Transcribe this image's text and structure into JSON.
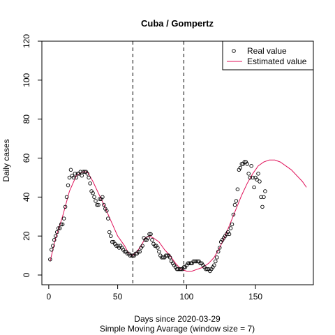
{
  "chart_data": {
    "type": "scatter",
    "title": "Cuba / Gompertz",
    "xlabel": "Days since 2020-03-29",
    "subtitle": "Simple Moving Avarage (window size = 7)",
    "ylabel": "Daily cases",
    "xlim": [
      -5,
      192
    ],
    "ylim": [
      -5,
      120
    ],
    "xticks": [
      0,
      50,
      100,
      150
    ],
    "yticks": [
      0,
      20,
      40,
      60,
      80,
      100,
      120
    ],
    "vlines": [
      61,
      98
    ],
    "legend": {
      "position": "top-right",
      "entries": [
        {
          "label": "Real value",
          "style": "circle",
          "color": "#000000"
        },
        {
          "label": "Estimated value",
          "style": "line",
          "color": "#e0125a"
        }
      ]
    },
    "series": [
      {
        "name": "Real value",
        "marker": "circle",
        "color": "#000000",
        "points": [
          [
            1,
            8
          ],
          [
            2,
            13
          ],
          [
            3,
            15
          ],
          [
            4,
            18
          ],
          [
            5,
            20
          ],
          [
            6,
            22
          ],
          [
            7,
            24
          ],
          [
            8,
            24
          ],
          [
            9,
            26
          ],
          [
            10,
            26
          ],
          [
            11,
            29
          ],
          [
            12,
            35
          ],
          [
            13,
            40
          ],
          [
            14,
            46
          ],
          [
            15,
            50
          ],
          [
            16,
            54
          ],
          [
            17,
            51
          ],
          [
            18,
            50
          ],
          [
            19,
            52
          ],
          [
            20,
            50
          ],
          [
            21,
            52
          ],
          [
            22,
            52
          ],
          [
            23,
            53
          ],
          [
            24,
            51
          ],
          [
            25,
            53
          ],
          [
            26,
            53
          ],
          [
            27,
            53
          ],
          [
            28,
            52
          ],
          [
            29,
            50
          ],
          [
            30,
            47
          ],
          [
            31,
            43
          ],
          [
            32,
            42
          ],
          [
            33,
            40
          ],
          [
            34,
            38
          ],
          [
            35,
            36
          ],
          [
            36,
            36
          ],
          [
            37,
            39
          ],
          [
            38,
            39
          ],
          [
            39,
            40
          ],
          [
            40,
            36
          ],
          [
            41,
            34
          ],
          [
            42,
            33
          ],
          [
            43,
            29
          ],
          [
            44,
            22
          ],
          [
            45,
            20
          ],
          [
            46,
            17
          ],
          [
            47,
            17
          ],
          [
            48,
            16
          ],
          [
            49,
            15
          ],
          [
            50,
            15
          ],
          [
            51,
            14
          ],
          [
            52,
            15
          ],
          [
            53,
            14
          ],
          [
            54,
            13
          ],
          [
            55,
            12
          ],
          [
            56,
            12
          ],
          [
            57,
            11
          ],
          [
            58,
            11
          ],
          [
            59,
            10
          ],
          [
            60,
            10
          ],
          [
            61,
            10
          ],
          [
            62,
            10
          ],
          [
            63,
            11
          ],
          [
            64,
            11
          ],
          [
            65,
            12
          ],
          [
            66,
            12
          ],
          [
            67,
            14
          ],
          [
            68,
            15
          ],
          [
            69,
            19
          ],
          [
            70,
            18
          ],
          [
            71,
            18
          ],
          [
            72,
            19
          ],
          [
            73,
            21
          ],
          [
            74,
            21
          ],
          [
            75,
            18
          ],
          [
            76,
            16
          ],
          [
            77,
            15
          ],
          [
            78,
            15
          ],
          [
            79,
            14
          ],
          [
            80,
            12
          ],
          [
            81,
            10
          ],
          [
            82,
            9
          ],
          [
            83,
            9
          ],
          [
            84,
            9
          ],
          [
            85,
            10
          ],
          [
            86,
            10
          ],
          [
            87,
            10
          ],
          [
            88,
            9
          ],
          [
            89,
            7
          ],
          [
            90,
            6
          ],
          [
            91,
            5
          ],
          [
            92,
            4
          ],
          [
            93,
            3
          ],
          [
            94,
            3
          ],
          [
            95,
            3
          ],
          [
            96,
            3
          ],
          [
            97,
            3
          ],
          [
            98,
            4
          ],
          [
            99,
            4
          ],
          [
            100,
            5
          ],
          [
            101,
            6
          ],
          [
            102,
            6
          ],
          [
            103,
            6
          ],
          [
            104,
            6
          ],
          [
            105,
            7
          ],
          [
            106,
            7
          ],
          [
            107,
            7
          ],
          [
            108,
            7
          ],
          [
            109,
            7
          ],
          [
            110,
            6
          ],
          [
            111,
            6
          ],
          [
            112,
            5
          ],
          [
            113,
            4
          ],
          [
            114,
            3
          ],
          [
            115,
            3
          ],
          [
            116,
            3
          ],
          [
            117,
            2
          ],
          [
            118,
            3
          ],
          [
            119,
            4
          ],
          [
            120,
            5
          ],
          [
            121,
            7
          ],
          [
            122,
            9
          ],
          [
            123,
            12
          ],
          [
            124,
            14
          ],
          [
            125,
            17
          ],
          [
            126,
            18
          ],
          [
            127,
            19
          ],
          [
            128,
            20
          ],
          [
            129,
            21
          ],
          [
            130,
            22
          ],
          [
            131,
            21
          ],
          [
            132,
            24
          ],
          [
            133,
            26
          ],
          [
            134,
            31
          ],
          [
            135,
            36
          ],
          [
            136,
            38
          ],
          [
            137,
            44
          ],
          [
            138,
            54
          ],
          [
            139,
            55
          ],
          [
            140,
            57
          ],
          [
            141,
            57
          ],
          [
            142,
            58
          ],
          [
            143,
            58
          ],
          [
            144,
            57
          ],
          [
            145,
            52
          ],
          [
            146,
            50
          ],
          [
            147,
            56
          ],
          [
            148,
            50
          ],
          [
            149,
            45
          ],
          [
            150,
            50
          ],
          [
            151,
            49
          ],
          [
            152,
            52
          ],
          [
            153,
            48
          ],
          [
            154,
            40
          ],
          [
            155,
            35
          ],
          [
            156,
            40
          ],
          [
            157,
            43
          ]
        ]
      },
      {
        "name": "Estimated value",
        "marker": "line",
        "color": "#e0125a",
        "points": [
          [
            1,
            7
          ],
          [
            5,
            19
          ],
          [
            10,
            30
          ],
          [
            15,
            43
          ],
          [
            20,
            51
          ],
          [
            25,
            53
          ],
          [
            28,
            53
          ],
          [
            32,
            48
          ],
          [
            36,
            42
          ],
          [
            40,
            36
          ],
          [
            45,
            28
          ],
          [
            50,
            20
          ],
          [
            55,
            15
          ],
          [
            58,
            11
          ],
          [
            61,
            10
          ],
          [
            64,
            12
          ],
          [
            67,
            15
          ],
          [
            70,
            19
          ],
          [
            73,
            20
          ],
          [
            76,
            19
          ],
          [
            80,
            17
          ],
          [
            84,
            13
          ],
          [
            88,
            10
          ],
          [
            92,
            6
          ],
          [
            96,
            3
          ],
          [
            100,
            2
          ],
          [
            104,
            2
          ],
          [
            108,
            3
          ],
          [
            112,
            4
          ],
          [
            116,
            6
          ],
          [
            120,
            9
          ],
          [
            124,
            14
          ],
          [
            128,
            20
          ],
          [
            132,
            27
          ],
          [
            136,
            34
          ],
          [
            140,
            41
          ],
          [
            144,
            47
          ],
          [
            148,
            52
          ],
          [
            152,
            56
          ],
          [
            156,
            58
          ],
          [
            160,
            59
          ],
          [
            164,
            59
          ],
          [
            168,
            58
          ],
          [
            172,
            56
          ],
          [
            176,
            54
          ],
          [
            180,
            51
          ],
          [
            184,
            48
          ],
          [
            187,
            45
          ]
        ]
      }
    ]
  }
}
